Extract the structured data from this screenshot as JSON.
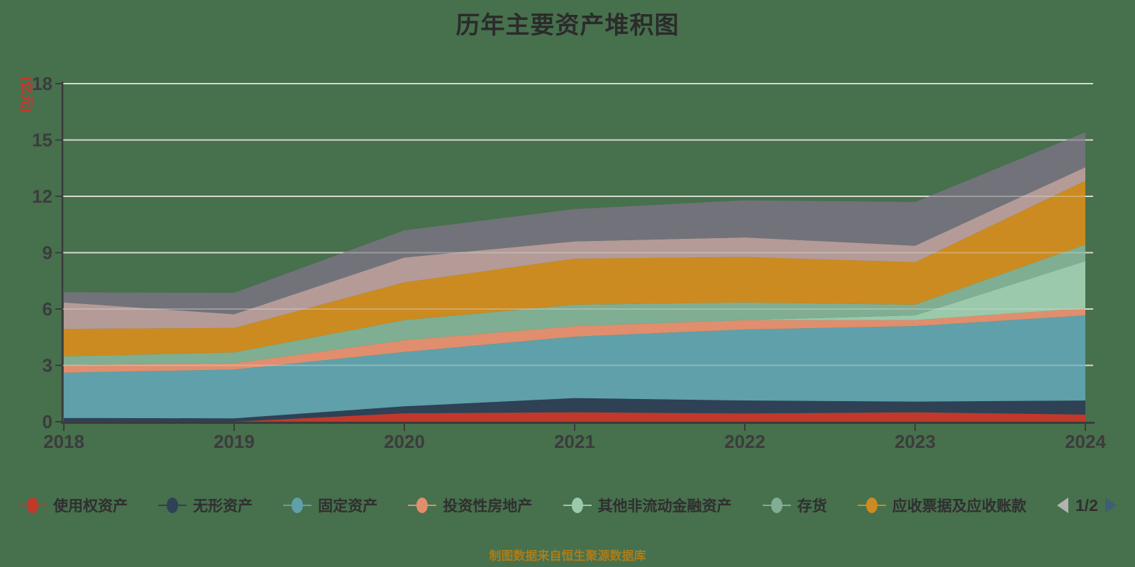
{
  "caption": "制图数据来自恒生聚源数据库",
  "legend": {
    "page_indicator": "1/2",
    "prev_arrow_color": "#b3b3b3",
    "next_arrow_color": "#3f5e75",
    "text_color": "#2f2f2f"
  },
  "ui_colors": {
    "background": "#47704d",
    "gridline": "#d8d8d2",
    "axis_line": "#3b3b3b",
    "tick_label": "#3c3c3c",
    "title": "#2b2b2b",
    "y_axis_unit": "#d9302a",
    "caption": "#aa7d1d"
  },
  "chart_data": {
    "type": "area",
    "stacked": true,
    "title": "历年主要资产堆积图",
    "y_axis_name": "(亿元)",
    "xlabel": "",
    "ylabel": "(亿元)",
    "categories": [
      "2018",
      "2019",
      "2020",
      "2021",
      "2022",
      "2023",
      "2024"
    ],
    "y_ticks": [
      0,
      3,
      6,
      9,
      12,
      15,
      18
    ],
    "ylim": [
      0,
      18
    ],
    "grid": true,
    "legend_position": "bottom",
    "series": [
      {
        "name": "使用权资产",
        "color": "#c0392b",
        "legend_page": 1,
        "values": [
          0,
          0,
          0.45,
          0.5,
          0.44,
          0.5,
          0.38
        ]
      },
      {
        "name": "无形资产",
        "color": "#2e4155",
        "legend_page": 1,
        "values": [
          0.2,
          0.18,
          0.37,
          0.76,
          0.69,
          0.57,
          0.75
        ]
      },
      {
        "name": "固定资产",
        "color": "#5fa0aa",
        "legend_page": 1,
        "values": [
          2.41,
          2.6,
          2.89,
          3.27,
          3.78,
          4.02,
          4.53
        ]
      },
      {
        "name": "投资性房地产",
        "color": "#e08e6d",
        "legend_page": 1,
        "values": [
          0.42,
          0.33,
          0.63,
          0.56,
          0.5,
          0.32,
          0.38
        ]
      },
      {
        "name": "其他非流动金融资产",
        "color": "#9ac9ab",
        "legend_page": 1,
        "values": [
          0,
          0,
          0,
          0,
          0,
          0.25,
          2.51
        ]
      },
      {
        "name": "存货",
        "color": "#7fae92",
        "legend_page": 1,
        "values": [
          0.45,
          0.58,
          1.07,
          1.14,
          0.94,
          0.57,
          0.88
        ]
      },
      {
        "name": "应收票据及应收账款",
        "color": "#cc8b20",
        "legend_page": 1,
        "values": [
          1.46,
          1.3,
          2.01,
          2.45,
          2.42,
          2.26,
          3.4
        ]
      },
      {
        "name": "",
        "color": "#b49b97",
        "legend_page": 2,
        "values": [
          1.41,
          0.73,
          1.32,
          0.92,
          1.04,
          0.88,
          0.72
        ]
      },
      {
        "name": "",
        "color": "#72727a",
        "legend_page": 2,
        "values": [
          0.54,
          1.14,
          1.45,
          1.72,
          1.98,
          2.33,
          1.86
        ]
      }
    ]
  }
}
